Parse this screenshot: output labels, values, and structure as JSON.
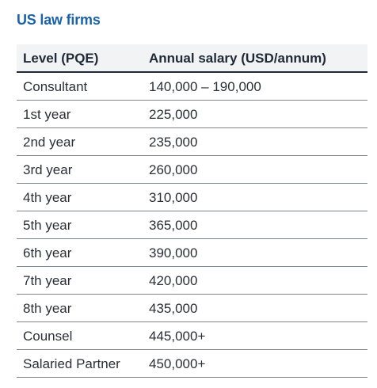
{
  "title": "US law firms",
  "table": {
    "headers": [
      "Level (PQE)",
      "Annual salary (USD/annum)"
    ],
    "rows": [
      [
        "Consultant",
        "140,000 – 190,000"
      ],
      [
        "1st year",
        "225,000"
      ],
      [
        "2nd year",
        "235,000"
      ],
      [
        "3rd year",
        "260,000"
      ],
      [
        "4th year",
        "310,000"
      ],
      [
        "5th year",
        "365,000"
      ],
      [
        "6th year",
        "390,000"
      ],
      [
        "7th year",
        "420,000"
      ],
      [
        "8th year",
        "435,000"
      ],
      [
        "Counsel",
        "445,000+"
      ],
      [
        "Salaried Partner",
        "450,000+"
      ]
    ]
  },
  "colors": {
    "title": "#1a63a8",
    "header_bg": "#f1f3f5",
    "text": "#2b2f36"
  }
}
